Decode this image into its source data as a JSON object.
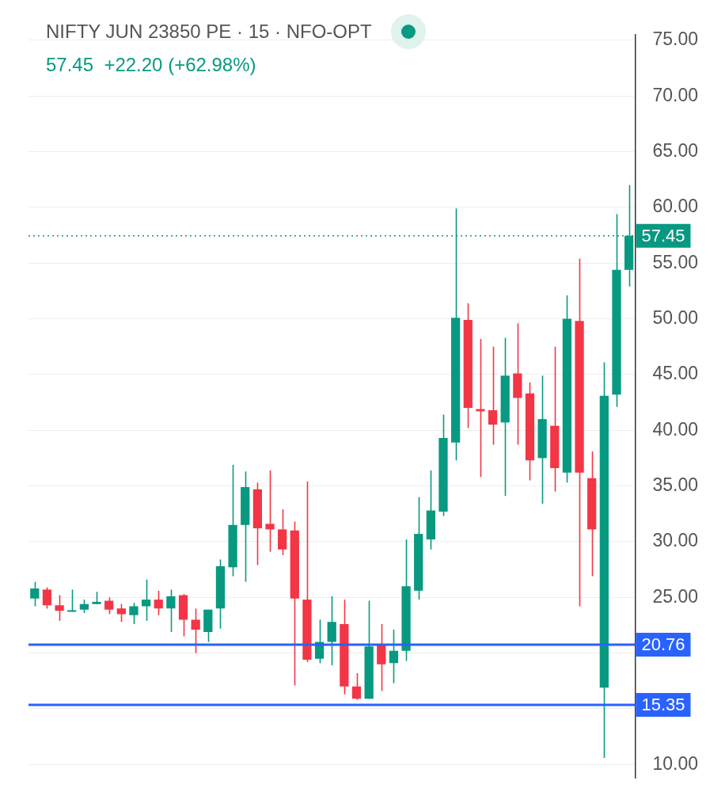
{
  "chart_data": {
    "type": "candlestick",
    "title": "NIFTY JUN 23850 PE · 15 · NFO-OPT",
    "subtitle": "57.45  +22.20 (+62.98%)",
    "categories": [
      null,
      null,
      null,
      null,
      null,
      null,
      null,
      null,
      null,
      null,
      null,
      null,
      null,
      null,
      null,
      null,
      null,
      null,
      null,
      null,
      null,
      null,
      null,
      null,
      null,
      null,
      null,
      null,
      null,
      null,
      null,
      null,
      null,
      null,
      null,
      null,
      null,
      null,
      null,
      null,
      null,
      null,
      null,
      null,
      null,
      null,
      null,
      null,
      null
    ],
    "ohlc": [
      [
        24.9,
        26.4,
        24.2,
        25.8
      ],
      [
        25.7,
        25.9,
        24.0,
        24.3
      ],
      [
        24.3,
        25.2,
        22.9,
        23.8
      ],
      [
        23.7,
        25.7,
        23.7,
        23.8
      ],
      [
        23.9,
        24.8,
        23.6,
        24.4
      ],
      [
        24.4,
        25.5,
        24.4,
        24.6
      ],
      [
        24.7,
        25.0,
        23.5,
        23.9
      ],
      [
        24.0,
        24.4,
        22.8,
        23.5
      ],
      [
        23.4,
        24.5,
        22.6,
        24.2
      ],
      [
        24.2,
        26.6,
        22.9,
        24.8
      ],
      [
        24.8,
        25.6,
        23.4,
        24.0
      ],
      [
        24.0,
        25.7,
        21.9,
        25.1
      ],
      [
        25.2,
        25.3,
        21.5,
        23.0
      ],
      [
        23.0,
        24.0,
        20.0,
        22.1
      ],
      [
        21.9,
        23.9,
        21.0,
        23.9
      ],
      [
        24.0,
        28.4,
        22.2,
        27.8
      ],
      [
        27.7,
        36.9,
        26.9,
        31.5
      ],
      [
        31.5,
        36.3,
        26.4,
        34.9
      ],
      [
        34.7,
        35.3,
        27.9,
        31.2
      ],
      [
        31.6,
        36.4,
        29.1,
        31.1
      ],
      [
        31.1,
        32.9,
        28.8,
        29.3
      ],
      [
        31.0,
        31.8,
        17.1,
        24.9
      ],
      [
        24.8,
        35.4,
        19.2,
        19.4
      ],
      [
        19.5,
        23.0,
        19.1,
        21.0
      ],
      [
        21.0,
        25.1,
        18.9,
        22.8
      ],
      [
        22.6,
        24.8,
        16.3,
        17.0
      ],
      [
        17.0,
        18.2,
        15.8,
        15.9
      ],
      [
        15.9,
        24.7,
        15.9,
        20.6
      ],
      [
        20.8,
        22.6,
        16.6,
        19.0
      ],
      [
        19.1,
        22.1,
        17.3,
        20.2
      ],
      [
        20.2,
        30.2,
        19.3,
        26.0
      ],
      [
        25.6,
        34.0,
        24.8,
        30.7
      ],
      [
        30.2,
        36.4,
        29.3,
        32.8
      ],
      [
        32.7,
        41.4,
        32.3,
        39.3
      ],
      [
        38.9,
        59.9,
        37.3,
        50.1
      ],
      [
        49.9,
        51.4,
        40.2,
        42.0
      ],
      [
        41.9,
        48.2,
        35.8,
        41.7
      ],
      [
        41.8,
        47.5,
        38.7,
        40.5
      ],
      [
        40.7,
        48.3,
        34.1,
        44.9
      ],
      [
        45.1,
        49.6,
        38.7,
        42.9
      ],
      [
        43.3,
        44.3,
        35.5,
        37.3
      ],
      [
        37.5,
        44.9,
        33.4,
        41.0
      ],
      [
        40.4,
        47.5,
        34.5,
        36.6
      ],
      [
        36.2,
        52.1,
        35.3,
        50.0
      ],
      [
        49.8,
        55.4,
        24.2,
        36.2
      ],
      [
        35.7,
        38.1,
        26.9,
        31.1
      ],
      [
        16.9,
        46.1,
        10.6,
        43.1
      ],
      [
        43.2,
        59.4,
        42.1,
        54.4
      ],
      [
        54.4,
        62.0,
        52.9,
        57.45
      ]
    ],
    "colors": [
      "#089981",
      "#f23645",
      "#f23645",
      "#089981",
      "#089981",
      "#089981",
      "#f23645",
      "#f23645",
      "#089981",
      "#089981",
      "#f23645",
      "#089981",
      "#f23645",
      "#f23645",
      "#089981",
      "#089981",
      "#089981",
      "#089981",
      "#f23645",
      "#f23645",
      "#f23645",
      "#f23645",
      "#f23645",
      "#089981",
      "#089981",
      "#f23645",
      "#f23645",
      "#089981",
      "#f23645",
      "#089981",
      "#089981",
      "#089981",
      "#089981",
      "#089981",
      "#089981",
      "#f23645",
      "#f23645",
      "#f23645",
      "#089981",
      "#f23645",
      "#f23645",
      "#089981",
      "#f23645",
      "#089981",
      "#f23645",
      "#f23645",
      "#089981",
      "#089981",
      "#089981"
    ],
    "ylim": [
      8.8,
      75.5
    ],
    "yticks": [
      {
        "value": 10,
        "label": "10.00"
      },
      {
        "value": 15,
        "label": null
      },
      {
        "value": 20,
        "label": null
      },
      {
        "value": 25,
        "label": "25.00"
      },
      {
        "value": 30,
        "label": "30.00"
      },
      {
        "value": 35,
        "label": "35.00"
      },
      {
        "value": 40,
        "label": "40.00"
      },
      {
        "value": 45,
        "label": "45.00"
      },
      {
        "value": 50,
        "label": "50.00"
      },
      {
        "value": 55,
        "label": "55.00"
      },
      {
        "value": 60,
        "label": "60.00"
      },
      {
        "value": 65,
        "label": "65.00"
      },
      {
        "value": 70,
        "label": "70.00"
      },
      {
        "value": 75,
        "label": "75.00"
      }
    ],
    "ref_lines": [
      {
        "axis": "y",
        "value": 57.45,
        "label": "57.45",
        "color": "#089981",
        "line_style": "dotted"
      },
      {
        "axis": "y",
        "value": 20.76,
        "label": "20.76",
        "color": "#2962ff",
        "line_style": "solid"
      },
      {
        "axis": "y",
        "value": 15.35,
        "label": "15.35",
        "color": "#2962ff",
        "line_style": "solid"
      }
    ],
    "grid": "y",
    "tick_labels": "y"
  }
}
